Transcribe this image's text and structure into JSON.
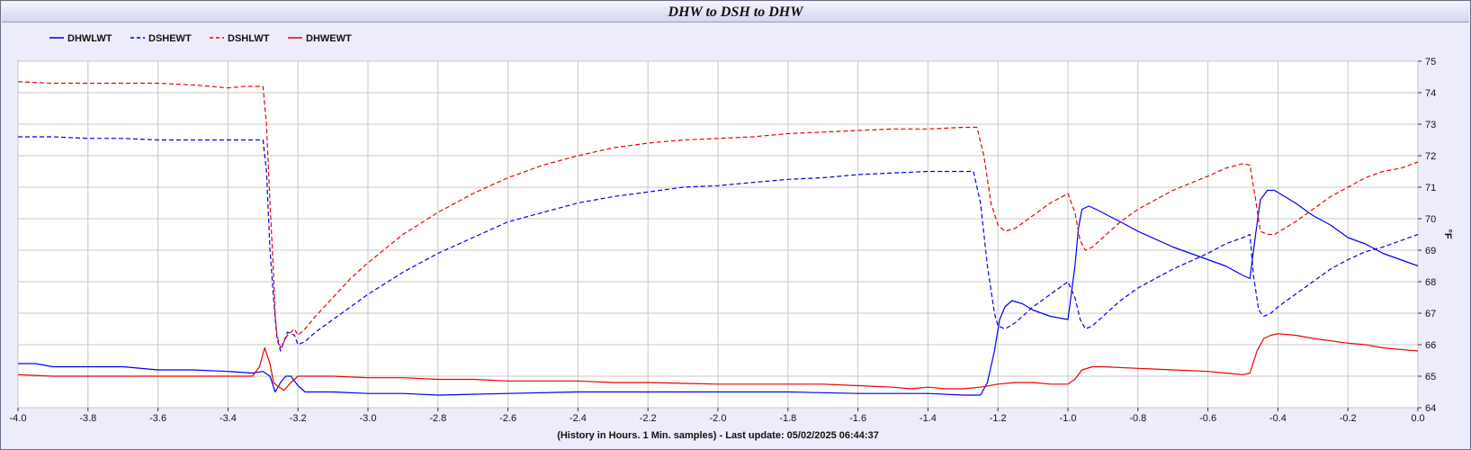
{
  "chart_data": {
    "type": "line",
    "title": "DHW to DSH to DHW",
    "xlabel": "(History in Hours. 1 Min. samples) - Last update: 05/02/2025 06:44:37",
    "ylabel": "°F",
    "xlim": [
      -4.0,
      0.0
    ],
    "ylim": [
      64,
      75
    ],
    "x_ticks": [
      "-4.0",
      "-3.8",
      "-3.6",
      "-3.4",
      "-3.2",
      "-3.0",
      "-2.8",
      "-2.6",
      "-2.4",
      "-2.2",
      "-2.0",
      "-1.8",
      "-1.6",
      "-1.4",
      "-1.2",
      "-1.0",
      "-0.8",
      "-0.6",
      "-0.4",
      "-0.2",
      "0.0"
    ],
    "y_ticks": [
      "64",
      "65",
      "66",
      "67",
      "68",
      "69",
      "70",
      "71",
      "72",
      "73",
      "74",
      "75"
    ],
    "grid": true,
    "legend_position": "top-left",
    "series": [
      {
        "name": "DHWLWT",
        "color": "#0000ee",
        "dashed": false,
        "points": [
          [
            -4.0,
            65.4
          ],
          [
            -3.95,
            65.4
          ],
          [
            -3.9,
            65.3
          ],
          [
            -3.8,
            65.3
          ],
          [
            -3.7,
            65.3
          ],
          [
            -3.6,
            65.2
          ],
          [
            -3.5,
            65.2
          ],
          [
            -3.4,
            65.15
          ],
          [
            -3.33,
            65.1
          ],
          [
            -3.3,
            65.15
          ],
          [
            -3.28,
            65.0
          ],
          [
            -3.265,
            64.5
          ],
          [
            -3.25,
            64.8
          ],
          [
            -3.235,
            65.0
          ],
          [
            -3.22,
            65.0
          ],
          [
            -3.2,
            64.7
          ],
          [
            -3.18,
            64.5
          ],
          [
            -3.1,
            64.5
          ],
          [
            -3.0,
            64.45
          ],
          [
            -2.9,
            64.45
          ],
          [
            -2.8,
            64.4
          ],
          [
            -2.6,
            64.45
          ],
          [
            -2.4,
            64.5
          ],
          [
            -2.2,
            64.5
          ],
          [
            -2.0,
            64.5
          ],
          [
            -1.8,
            64.5
          ],
          [
            -1.6,
            64.45
          ],
          [
            -1.4,
            64.45
          ],
          [
            -1.3,
            64.4
          ],
          [
            -1.25,
            64.4
          ],
          [
            -1.23,
            64.8
          ],
          [
            -1.21,
            65.8
          ],
          [
            -1.195,
            66.8
          ],
          [
            -1.18,
            67.2
          ],
          [
            -1.16,
            67.4
          ],
          [
            -1.13,
            67.3
          ],
          [
            -1.1,
            67.1
          ],
          [
            -1.05,
            66.9
          ],
          [
            -1.0,
            66.8
          ],
          [
            -0.995,
            67.2
          ],
          [
            -0.98,
            68.5
          ],
          [
            -0.97,
            69.7
          ],
          [
            -0.96,
            70.3
          ],
          [
            -0.94,
            70.4
          ],
          [
            -0.92,
            70.3
          ],
          [
            -0.85,
            69.9
          ],
          [
            -0.8,
            69.6
          ],
          [
            -0.7,
            69.1
          ],
          [
            -0.6,
            68.7
          ],
          [
            -0.55,
            68.5
          ],
          [
            -0.5,
            68.2
          ],
          [
            -0.48,
            68.1
          ],
          [
            -0.465,
            69.4
          ],
          [
            -0.45,
            70.6
          ],
          [
            -0.43,
            70.9
          ],
          [
            -0.41,
            70.9
          ],
          [
            -0.35,
            70.5
          ],
          [
            -0.3,
            70.1
          ],
          [
            -0.25,
            69.8
          ],
          [
            -0.2,
            69.4
          ],
          [
            -0.15,
            69.2
          ],
          [
            -0.1,
            68.9
          ],
          [
            -0.05,
            68.7
          ],
          [
            0.0,
            68.5
          ]
        ]
      },
      {
        "name": "DSHEWT",
        "color": "#0000ee",
        "dashed": true,
        "points": [
          [
            -4.0,
            72.6
          ],
          [
            -3.9,
            72.6
          ],
          [
            -3.8,
            72.55
          ],
          [
            -3.7,
            72.55
          ],
          [
            -3.6,
            72.5
          ],
          [
            -3.5,
            72.5
          ],
          [
            -3.4,
            72.5
          ],
          [
            -3.3,
            72.5
          ],
          [
            -3.29,
            71.5
          ],
          [
            -3.28,
            69.0
          ],
          [
            -3.27,
            67.5
          ],
          [
            -3.26,
            66.2
          ],
          [
            -3.25,
            65.8
          ],
          [
            -3.24,
            66.1
          ],
          [
            -3.23,
            66.4
          ],
          [
            -3.21,
            66.3
          ],
          [
            -3.2,
            66.0
          ],
          [
            -3.18,
            66.1
          ],
          [
            -3.15,
            66.4
          ],
          [
            -3.1,
            66.8
          ],
          [
            -3.0,
            67.6
          ],
          [
            -2.9,
            68.3
          ],
          [
            -2.8,
            68.9
          ],
          [
            -2.7,
            69.4
          ],
          [
            -2.6,
            69.9
          ],
          [
            -2.5,
            70.2
          ],
          [
            -2.4,
            70.5
          ],
          [
            -2.3,
            70.7
          ],
          [
            -2.2,
            70.85
          ],
          [
            -2.1,
            71.0
          ],
          [
            -2.0,
            71.05
          ],
          [
            -1.9,
            71.15
          ],
          [
            -1.8,
            71.25
          ],
          [
            -1.7,
            71.3
          ],
          [
            -1.6,
            71.4
          ],
          [
            -1.5,
            71.45
          ],
          [
            -1.4,
            71.5
          ],
          [
            -1.3,
            71.5
          ],
          [
            -1.27,
            71.5
          ],
          [
            -1.25,
            70.5
          ],
          [
            -1.23,
            68.5
          ],
          [
            -1.21,
            67.0
          ],
          [
            -1.2,
            66.6
          ],
          [
            -1.18,
            66.5
          ],
          [
            -1.15,
            66.7
          ],
          [
            -1.1,
            67.2
          ],
          [
            -1.05,
            67.6
          ],
          [
            -1.0,
            68.0
          ],
          [
            -0.98,
            67.5
          ],
          [
            -0.965,
            66.8
          ],
          [
            -0.95,
            66.5
          ],
          [
            -0.93,
            66.6
          ],
          [
            -0.9,
            66.9
          ],
          [
            -0.85,
            67.4
          ],
          [
            -0.8,
            67.8
          ],
          [
            -0.7,
            68.4
          ],
          [
            -0.6,
            68.9
          ],
          [
            -0.55,
            69.2
          ],
          [
            -0.5,
            69.4
          ],
          [
            -0.48,
            69.5
          ],
          [
            -0.47,
            68.2
          ],
          [
            -0.455,
            67.1
          ],
          [
            -0.44,
            66.9
          ],
          [
            -0.42,
            67.0
          ],
          [
            -0.4,
            67.2
          ],
          [
            -0.35,
            67.6
          ],
          [
            -0.3,
            68.0
          ],
          [
            -0.25,
            68.4
          ],
          [
            -0.2,
            68.7
          ],
          [
            -0.15,
            68.95
          ],
          [
            -0.1,
            69.1
          ],
          [
            -0.05,
            69.3
          ],
          [
            0.0,
            69.5
          ]
        ]
      },
      {
        "name": "DSHLWT",
        "color": "#ee0000",
        "dashed": true,
        "points": [
          [
            -4.0,
            74.35
          ],
          [
            -3.9,
            74.3
          ],
          [
            -3.8,
            74.3
          ],
          [
            -3.7,
            74.3
          ],
          [
            -3.6,
            74.3
          ],
          [
            -3.5,
            74.25
          ],
          [
            -3.45,
            74.2
          ],
          [
            -3.4,
            74.15
          ],
          [
            -3.35,
            74.2
          ],
          [
            -3.3,
            74.2
          ],
          [
            -3.29,
            73.0
          ],
          [
            -3.28,
            70.5
          ],
          [
            -3.27,
            68.3
          ],
          [
            -3.265,
            66.9
          ],
          [
            -3.26,
            66.3
          ],
          [
            -3.25,
            65.9
          ],
          [
            -3.24,
            66.1
          ],
          [
            -3.23,
            66.3
          ],
          [
            -3.21,
            66.5
          ],
          [
            -3.2,
            66.3
          ],
          [
            -3.18,
            66.5
          ],
          [
            -3.15,
            66.9
          ],
          [
            -3.1,
            67.5
          ],
          [
            -3.05,
            68.1
          ],
          [
            -3.0,
            68.6
          ],
          [
            -2.9,
            69.5
          ],
          [
            -2.8,
            70.2
          ],
          [
            -2.7,
            70.8
          ],
          [
            -2.6,
            71.3
          ],
          [
            -2.5,
            71.7
          ],
          [
            -2.4,
            72.0
          ],
          [
            -2.3,
            72.25
          ],
          [
            -2.2,
            72.4
          ],
          [
            -2.1,
            72.5
          ],
          [
            -2.0,
            72.55
          ],
          [
            -1.9,
            72.6
          ],
          [
            -1.8,
            72.7
          ],
          [
            -1.7,
            72.75
          ],
          [
            -1.6,
            72.8
          ],
          [
            -1.5,
            72.85
          ],
          [
            -1.4,
            72.85
          ],
          [
            -1.3,
            72.9
          ],
          [
            -1.26,
            72.9
          ],
          [
            -1.24,
            72.0
          ],
          [
            -1.22,
            70.5
          ],
          [
            -1.2,
            69.8
          ],
          [
            -1.18,
            69.6
          ],
          [
            -1.15,
            69.7
          ],
          [
            -1.1,
            70.1
          ],
          [
            -1.05,
            70.5
          ],
          [
            -1.0,
            70.8
          ],
          [
            -0.98,
            70.2
          ],
          [
            -0.965,
            69.3
          ],
          [
            -0.95,
            69.0
          ],
          [
            -0.93,
            69.1
          ],
          [
            -0.9,
            69.4
          ],
          [
            -0.85,
            69.9
          ],
          [
            -0.8,
            70.3
          ],
          [
            -0.7,
            70.9
          ],
          [
            -0.6,
            71.35
          ],
          [
            -0.55,
            71.6
          ],
          [
            -0.5,
            71.75
          ],
          [
            -0.48,
            71.7
          ],
          [
            -0.465,
            70.7
          ],
          [
            -0.45,
            69.6
          ],
          [
            -0.43,
            69.5
          ],
          [
            -0.41,
            69.5
          ],
          [
            -0.35,
            69.9
          ],
          [
            -0.3,
            70.3
          ],
          [
            -0.25,
            70.7
          ],
          [
            -0.2,
            71.0
          ],
          [
            -0.15,
            71.3
          ],
          [
            -0.1,
            71.5
          ],
          [
            -0.05,
            71.6
          ],
          [
            0.0,
            71.8
          ]
        ]
      },
      {
        "name": "DHWEWT",
        "color": "#ee0000",
        "dashed": false,
        "points": [
          [
            -4.0,
            65.05
          ],
          [
            -3.9,
            65.0
          ],
          [
            -3.8,
            65.0
          ],
          [
            -3.7,
            65.0
          ],
          [
            -3.6,
            65.0
          ],
          [
            -3.5,
            65.0
          ],
          [
            -3.4,
            65.0
          ],
          [
            -3.33,
            65.0
          ],
          [
            -3.31,
            65.3
          ],
          [
            -3.295,
            65.9
          ],
          [
            -3.28,
            65.4
          ],
          [
            -3.27,
            64.8
          ],
          [
            -3.26,
            64.7
          ],
          [
            -3.24,
            64.55
          ],
          [
            -3.22,
            64.8
          ],
          [
            -3.2,
            65.0
          ],
          [
            -3.1,
            65.0
          ],
          [
            -3.0,
            64.95
          ],
          [
            -2.9,
            64.95
          ],
          [
            -2.8,
            64.9
          ],
          [
            -2.7,
            64.9
          ],
          [
            -2.6,
            64.85
          ],
          [
            -2.5,
            64.85
          ],
          [
            -2.4,
            64.85
          ],
          [
            -2.3,
            64.8
          ],
          [
            -2.2,
            64.8
          ],
          [
            -2.0,
            64.75
          ],
          [
            -1.8,
            64.75
          ],
          [
            -1.7,
            64.75
          ],
          [
            -1.6,
            64.7
          ],
          [
            -1.5,
            64.65
          ],
          [
            -1.45,
            64.6
          ],
          [
            -1.4,
            64.65
          ],
          [
            -1.35,
            64.6
          ],
          [
            -1.3,
            64.6
          ],
          [
            -1.25,
            64.65
          ],
          [
            -1.2,
            64.75
          ],
          [
            -1.15,
            64.8
          ],
          [
            -1.1,
            64.8
          ],
          [
            -1.05,
            64.75
          ],
          [
            -1.0,
            64.75
          ],
          [
            -0.98,
            64.9
          ],
          [
            -0.96,
            65.2
          ],
          [
            -0.93,
            65.3
          ],
          [
            -0.9,
            65.3
          ],
          [
            -0.8,
            65.25
          ],
          [
            -0.7,
            65.2
          ],
          [
            -0.6,
            65.15
          ],
          [
            -0.55,
            65.1
          ],
          [
            -0.5,
            65.05
          ],
          [
            -0.48,
            65.1
          ],
          [
            -0.46,
            65.8
          ],
          [
            -0.44,
            66.2
          ],
          [
            -0.42,
            66.3
          ],
          [
            -0.4,
            66.35
          ],
          [
            -0.35,
            66.3
          ],
          [
            -0.3,
            66.2
          ],
          [
            -0.2,
            66.05
          ],
          [
            -0.15,
            66.0
          ],
          [
            -0.1,
            65.9
          ],
          [
            -0.05,
            65.85
          ],
          [
            0.0,
            65.8
          ]
        ]
      }
    ]
  }
}
